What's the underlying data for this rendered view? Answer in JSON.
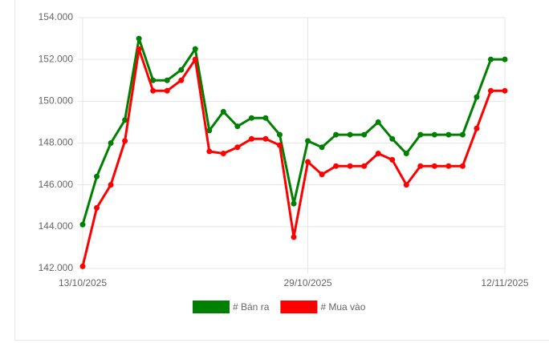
{
  "chart_data": {
    "type": "line",
    "categories": [
      "13/10/2025",
      null,
      null,
      null,
      null,
      null,
      null,
      null,
      null,
      null,
      null,
      null,
      null,
      null,
      null,
      null,
      "29/10/2025",
      null,
      null,
      null,
      null,
      null,
      null,
      null,
      null,
      null,
      null,
      null,
      null,
      null,
      "12/11/2025"
    ],
    "series": [
      {
        "name": "# Bán ra",
        "color": "#008000",
        "values": [
          144100,
          146400,
          148000,
          149100,
          153000,
          151000,
          151000,
          151500,
          152500,
          148600,
          149500,
          148800,
          149200,
          149200,
          148400,
          145100,
          148100,
          147800,
          148400,
          148400,
          148400,
          149000,
          148200,
          147500,
          148400,
          148400,
          148400,
          148400,
          150200,
          152000,
          152000
        ]
      },
      {
        "name": "# Mua vào",
        "color": "#ff0000",
        "values": [
          142100,
          144900,
          146000,
          148100,
          152500,
          150500,
          150500,
          151000,
          152000,
          147600,
          147500,
          147800,
          148200,
          148200,
          147900,
          143500,
          147100,
          146500,
          146900,
          146900,
          146900,
          147500,
          147200,
          146000,
          146900,
          146900,
          146900,
          146900,
          148700,
          150500,
          150500
        ]
      }
    ],
    "ylim": [
      142000,
      154000
    ],
    "yticks": [
      {
        "value": 142000,
        "label": "142.000"
      },
      {
        "value": 144000,
        "label": "144.000"
      },
      {
        "value": 146000,
        "label": "146.000"
      },
      {
        "value": 148000,
        "label": "148.000"
      },
      {
        "value": 150000,
        "label": "150.000"
      },
      {
        "value": 152000,
        "label": "152.000"
      },
      {
        "value": 154000,
        "label": "154.000"
      }
    ],
    "grid": true,
    "legend": "bottom"
  }
}
